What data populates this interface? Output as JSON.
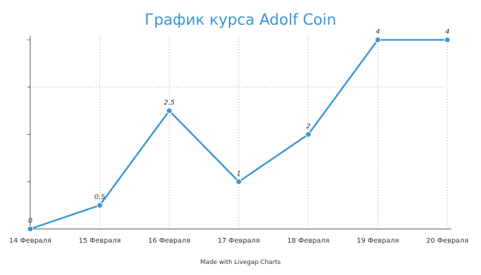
{
  "chart_data": {
    "type": "line",
    "title": "График курса Adolf Coin",
    "categories": [
      "14 Февраля",
      "15 Февраля",
      "16 Февраля",
      "17 Февраля",
      "18 Февраля",
      "19 Февраля",
      "20 Февраля"
    ],
    "series": [
      {
        "values": [
          0,
          0.5,
          2.5,
          1,
          2,
          4,
          4
        ],
        "labels": [
          "0",
          "0.5",
          "2.5",
          "1",
          "2",
          "4",
          "4"
        ]
      }
    ],
    "ylim": [
      0,
      4
    ],
    "ylabel": "",
    "xlabel": "",
    "grid": true,
    "colors": {
      "line": "#3a96d6",
      "title": "#3a96d6"
    }
  },
  "footer": "Made with Livegap Charts"
}
